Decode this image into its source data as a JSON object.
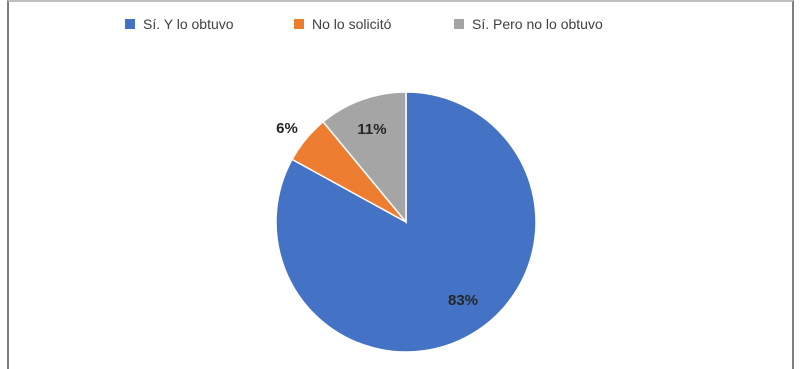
{
  "chart_data": {
    "type": "pie",
    "title": "",
    "legend_position": "top",
    "slices": [
      {
        "label": "Sí. Y lo obtuvo",
        "value": 83,
        "display": "83%",
        "color": "#4472c4"
      },
      {
        "label": "No lo solicitó",
        "value": 6,
        "display": "6%",
        "color": "#ed7d31"
      },
      {
        "label": "Sí. Pero no lo obtuvo",
        "value": 11,
        "display": "11%",
        "color": "#a5a5a5"
      }
    ]
  }
}
